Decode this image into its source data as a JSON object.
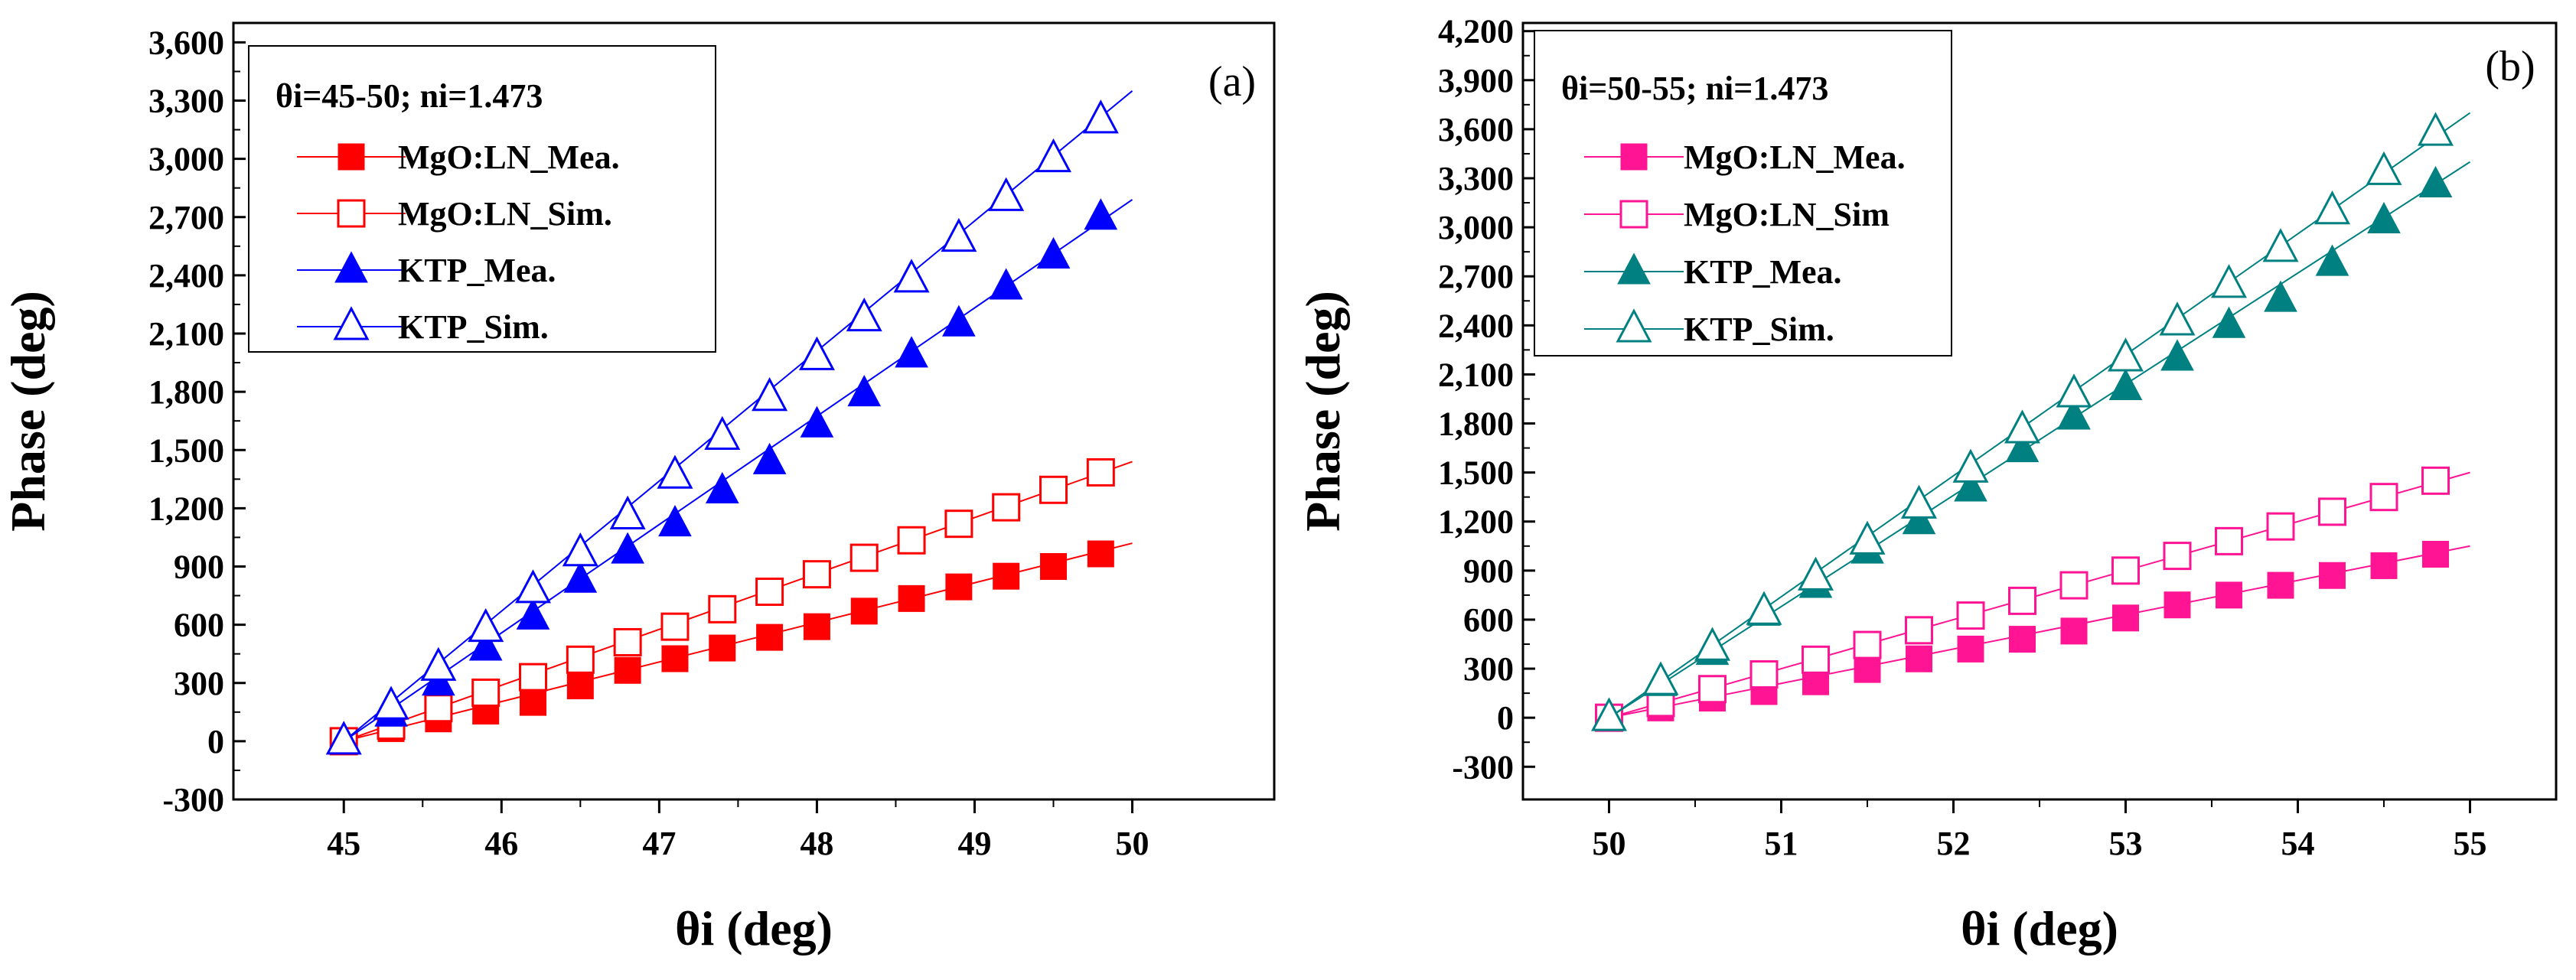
{
  "chart_data": [
    {
      "type": "line",
      "panel_label": "(a)",
      "xlabel": "θi (deg)",
      "ylabel": "Phase (deg)",
      "xlim": [
        44.3,
        50.9
      ],
      "ylim": [
        -300,
        3700
      ],
      "xticks": [
        45,
        46,
        47,
        48,
        49,
        50
      ],
      "yticks": [
        -300,
        0,
        300,
        600,
        900,
        1200,
        1500,
        1800,
        2100,
        2400,
        2700,
        3000,
        3300,
        3600
      ],
      "ytick_labels": [
        "-300",
        "0",
        "300",
        "600",
        "900",
        "1,200",
        "1,500",
        "1,800",
        "2,100",
        "2,400",
        "2,700",
        "3,000",
        "3,300",
        "3,600"
      ],
      "legend_title": "θi=45-50; ni=1.473",
      "legend_position": "top-left",
      "x": [
        45.0,
        45.3,
        45.6,
        45.9,
        46.2,
        46.5,
        46.8,
        47.1,
        47.4,
        47.7,
        48.0,
        48.3,
        48.6,
        48.9,
        49.2,
        49.5,
        49.8
      ],
      "line_x": [
        45.0,
        50.0
      ],
      "series": [
        {
          "name": "MgO:LN_Mea.",
          "color": "#ff0000",
          "marker": "square",
          "filled": true,
          "line_end": 1020,
          "values": [
            0,
            65,
            115,
            155,
            200,
            285,
            365,
            425,
            480,
            535,
            590,
            670,
            735,
            795,
            850,
            900,
            965
          ]
        },
        {
          "name": "MgO:LN_Sim.",
          "color": "#ff0000",
          "marker": "square",
          "filled": false,
          "line_end": 1440,
          "values": [
            0,
            80,
            170,
            250,
            330,
            420,
            510,
            590,
            680,
            770,
            860,
            945,
            1035,
            1120,
            1205,
            1295,
            1385
          ]
        },
        {
          "name": "KTP_Mea.",
          "color": "#0000ff",
          "marker": "triangle",
          "filled": true,
          "line_end": 2790,
          "values": [
            0,
            140,
            300,
            480,
            640,
            830,
            980,
            1120,
            1290,
            1440,
            1630,
            1790,
            1990,
            2150,
            2340,
            2500,
            2700
          ]
        },
        {
          "name": "KTP_Sim.",
          "color": "#0000ff",
          "marker": "triangle",
          "filled": false,
          "line_end": 3350,
          "values": [
            0,
            180,
            380,
            580,
            780,
            970,
            1160,
            1370,
            1570,
            1770,
            1980,
            2180,
            2380,
            2590,
            2800,
            3000,
            3200
          ]
        }
      ]
    },
    {
      "type": "line",
      "panel_label": "(b)",
      "xlabel": "θi (deg)",
      "ylabel": "Phase (deg)",
      "xlim": [
        49.5,
        55.5
      ],
      "ylim": [
        -500,
        4250
      ],
      "xticks": [
        50,
        51,
        52,
        53,
        54,
        55
      ],
      "yticks": [
        -300,
        0,
        300,
        600,
        900,
        1200,
        1500,
        1800,
        2100,
        2400,
        2700,
        3000,
        3300,
        3600,
        3900,
        4200
      ],
      "ytick_labels": [
        "-300",
        "0",
        "300",
        "600",
        "900",
        "1,200",
        "1,500",
        "1,800",
        "2,100",
        "2,400",
        "2,700",
        "3,000",
        "3,300",
        "3,600",
        "3,900",
        "4,200"
      ],
      "legend_title": "θi=50-55; ni=1.473",
      "legend_position": "top-left",
      "x": [
        50.0,
        50.3,
        50.6,
        50.9,
        51.2,
        51.5,
        51.8,
        52.1,
        52.4,
        52.7,
        53.0,
        53.3,
        53.6,
        53.9,
        54.2,
        54.5,
        54.8
      ],
      "line_x": [
        50.0,
        55.0
      ],
      "series": [
        {
          "name": "MgO:LN_Mea.",
          "color": "#ff1493",
          "marker": "square",
          "filled": true,
          "line_end": 1050,
          "values": [
            0,
            60,
            120,
            160,
            220,
            295,
            360,
            420,
            480,
            530,
            610,
            690,
            750,
            810,
            870,
            930,
            1000
          ]
        },
        {
          "name": "MgO:LN_Sim",
          "color": "#ff1493",
          "marker": "square",
          "filled": false,
          "line_end": 1500,
          "values": [
            0,
            90,
            175,
            265,
            355,
            445,
            535,
            625,
            715,
            810,
            900,
            990,
            1080,
            1170,
            1260,
            1350,
            1450
          ]
        },
        {
          "name": "KTP_Mea.",
          "color": "#008080",
          "marker": "triangle",
          "filled": true,
          "line_end": 3400,
          "values": [
            0,
            210,
            400,
            640,
            810,
            1020,
            1200,
            1400,
            1640,
            1840,
            2020,
            2200,
            2400,
            2560,
            2780,
            3040,
            3260
          ]
        },
        {
          "name": "KTP_Sim.",
          "color": "#008080",
          "marker": "triangle",
          "filled": false,
          "line_end": 3700,
          "values": [
            0,
            220,
            430,
            650,
            860,
            1080,
            1300,
            1520,
            1760,
            1980,
            2200,
            2420,
            2650,
            2870,
            3100,
            3340,
            3580
          ]
        }
      ]
    }
  ]
}
